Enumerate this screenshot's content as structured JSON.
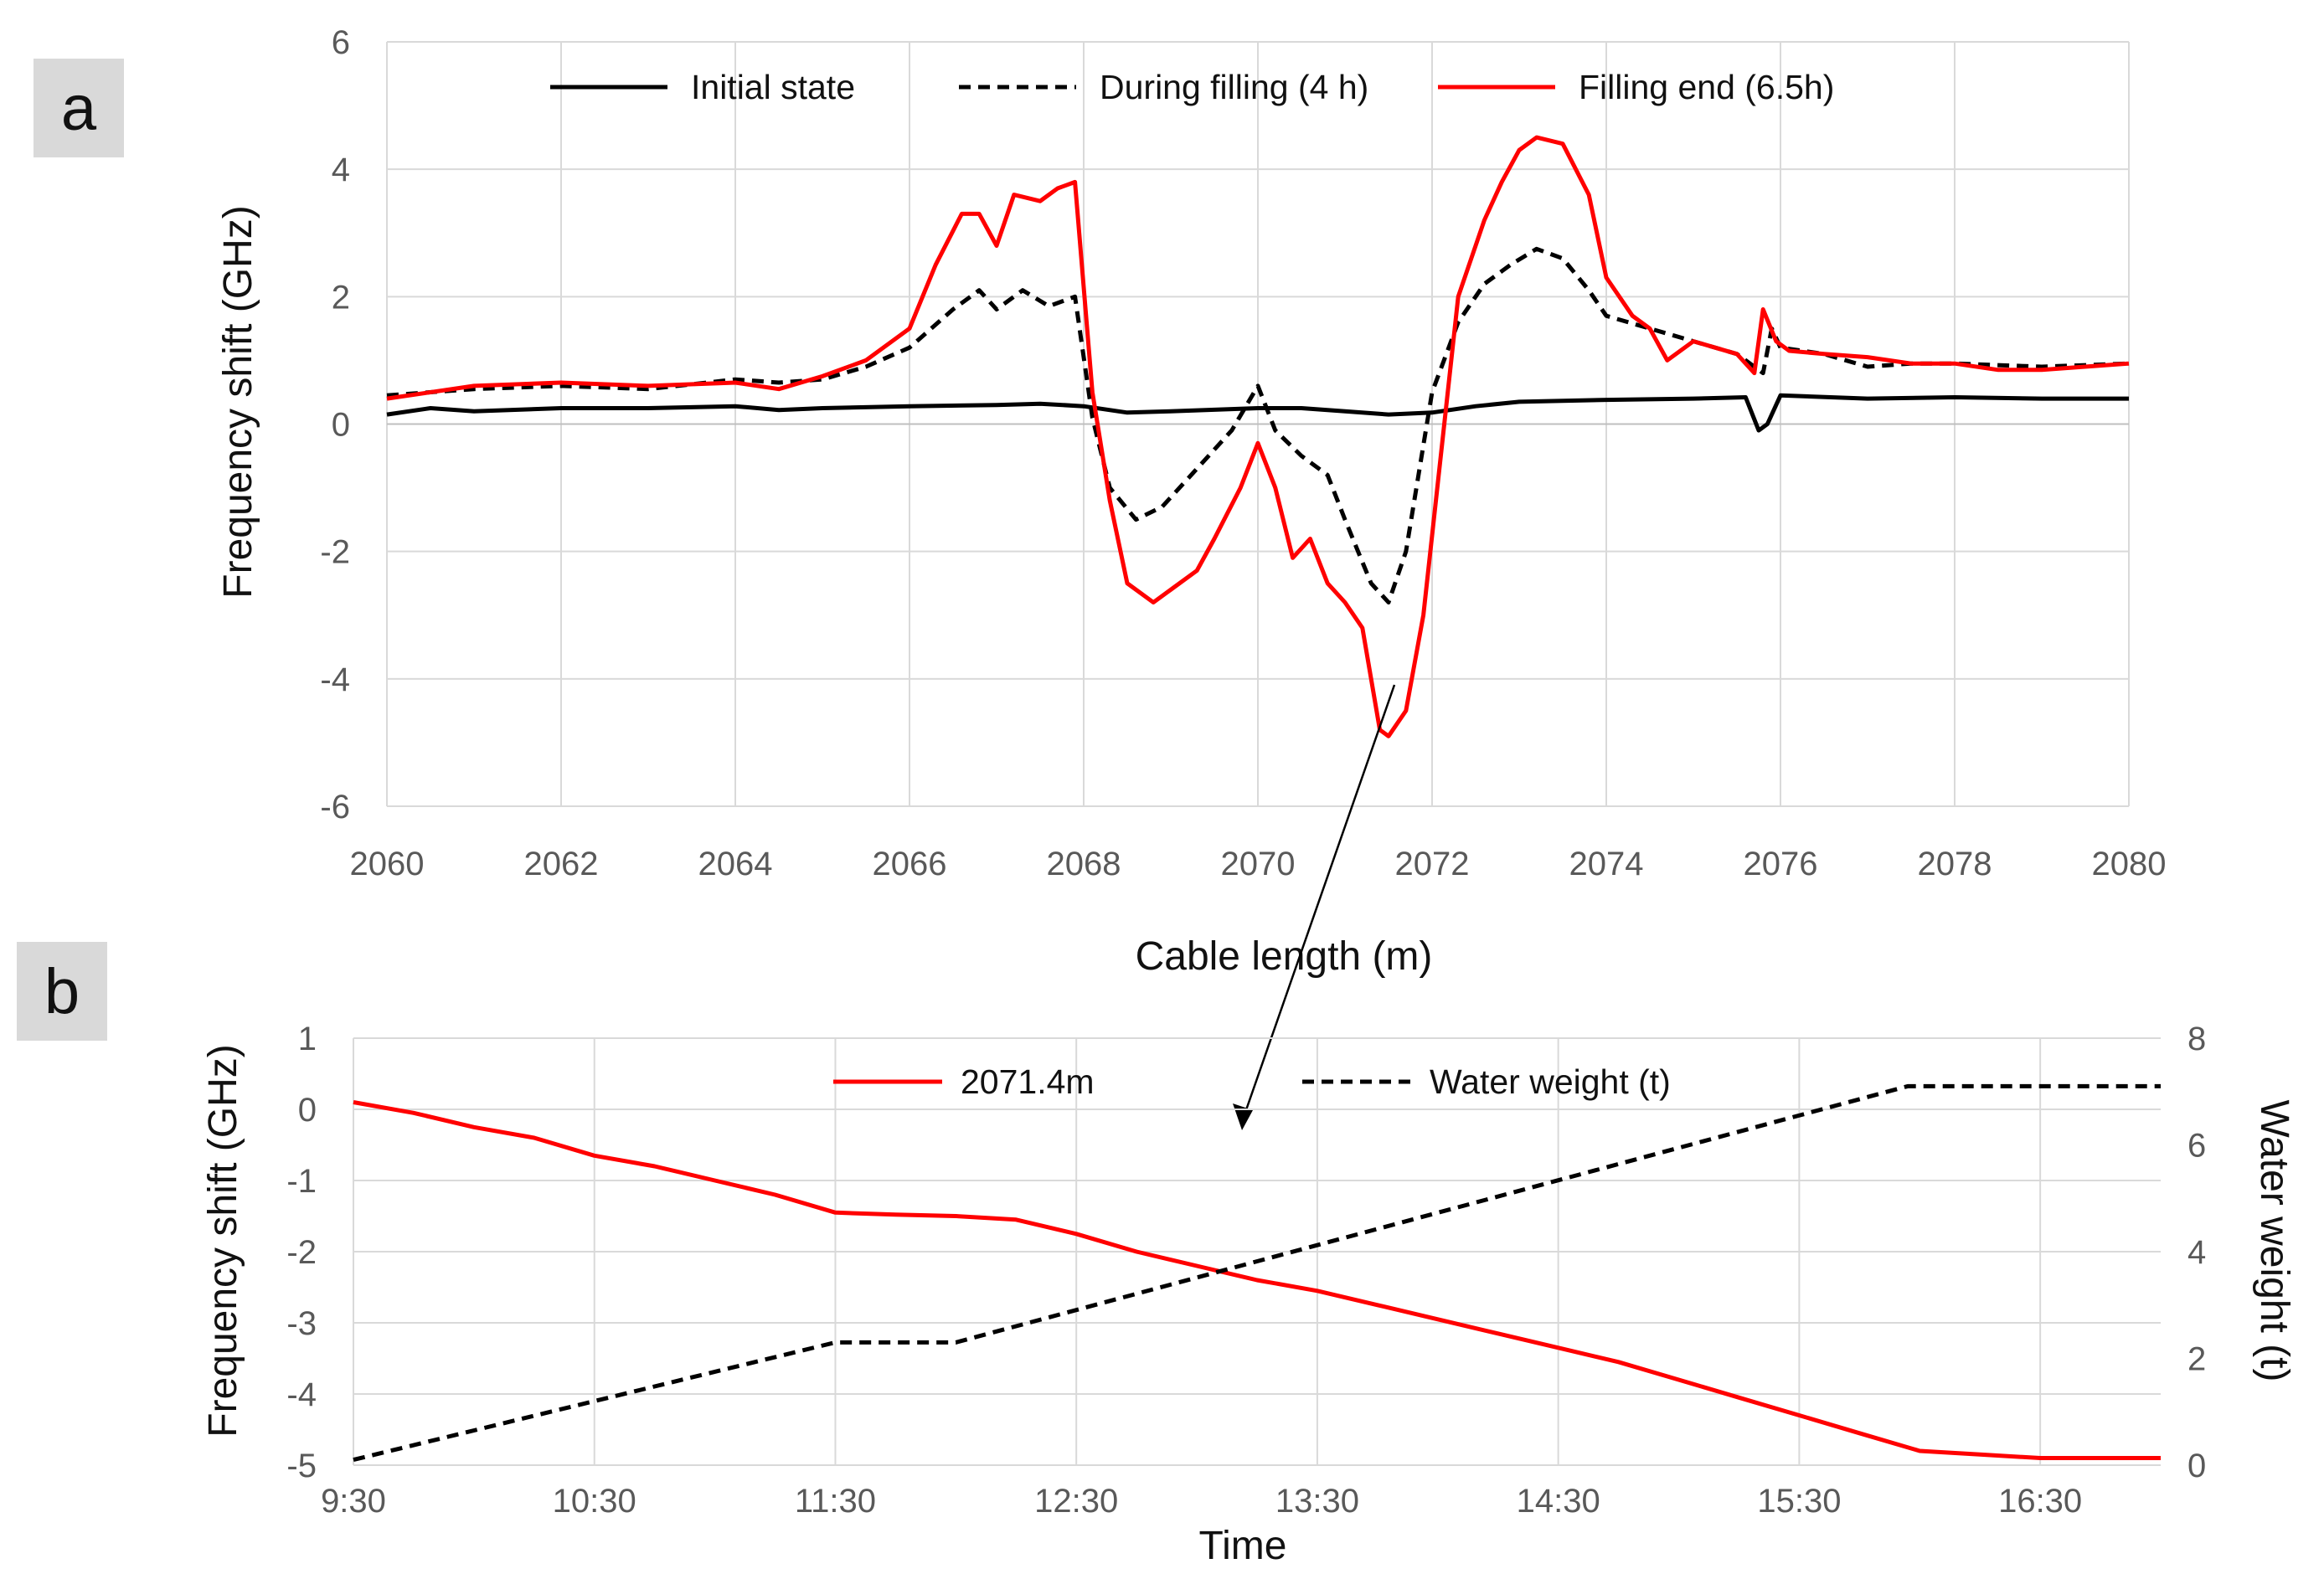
{
  "chart_data": [
    {
      "panel": "a",
      "type": "line",
      "xlabel": "Cable length (m)",
      "ylabel": "Frequency shift (GHz)",
      "xlim": [
        2060,
        2080
      ],
      "ylim": [
        -6,
        6
      ],
      "xticks": [
        2060,
        2062,
        2064,
        2066,
        2068,
        2070,
        2072,
        2074,
        2076,
        2078,
        2080
      ],
      "yticks": [
        -6,
        -4,
        -2,
        0,
        2,
        4,
        6
      ],
      "grid": true,
      "legend_position": "top",
      "series": [
        {
          "name": "Initial state",
          "color": "#000000",
          "style": "solid",
          "x": [
            2060,
            2060.5,
            2061,
            2062,
            2063,
            2064,
            2064.5,
            2065,
            2066,
            2067,
            2067.5,
            2068,
            2068.5,
            2069,
            2070,
            2070.5,
            2071,
            2071.5,
            2072,
            2072.5,
            2073,
            2074,
            2075,
            2075.6,
            2075.75,
            2075.85,
            2076,
            2077,
            2078,
            2079,
            2080
          ],
          "y": [
            0.15,
            0.25,
            0.2,
            0.25,
            0.25,
            0.28,
            0.22,
            0.25,
            0.28,
            0.3,
            0.32,
            0.28,
            0.18,
            0.2,
            0.25,
            0.25,
            0.2,
            0.15,
            0.18,
            0.28,
            0.35,
            0.38,
            0.4,
            0.42,
            -0.1,
            0.0,
            0.45,
            0.4,
            0.42,
            0.4,
            0.4
          ]
        },
        {
          "name": "During filling (4 h)",
          "color": "#000000",
          "style": "dashed",
          "x": [
            2060,
            2061,
            2062,
            2063,
            2064,
            2064.5,
            2065,
            2065.5,
            2066,
            2066.5,
            2066.8,
            2067,
            2067.3,
            2067.6,
            2067.9,
            2068.1,
            2068.3,
            2068.6,
            2068.9,
            2069.3,
            2069.7,
            2070,
            2070.2,
            2070.5,
            2070.8,
            2071,
            2071.3,
            2071.5,
            2071.7,
            2072,
            2072.3,
            2072.6,
            2072.9,
            2073.2,
            2073.5,
            2073.8,
            2074,
            2074.5,
            2075,
            2075.5,
            2075.8,
            2075.9,
            2076,
            2076.5,
            2077,
            2077.5,
            2078,
            2079,
            2080
          ],
          "y": [
            0.45,
            0.55,
            0.6,
            0.55,
            0.7,
            0.65,
            0.7,
            0.9,
            1.2,
            1.8,
            2.1,
            1.8,
            2.1,
            1.85,
            2.0,
            0.1,
            -1.0,
            -1.5,
            -1.3,
            -0.7,
            -0.1,
            0.6,
            -0.1,
            -0.5,
            -0.8,
            -1.5,
            -2.5,
            -2.8,
            -2.0,
            0.5,
            1.6,
            2.2,
            2.5,
            2.75,
            2.6,
            2.1,
            1.7,
            1.5,
            1.3,
            1.1,
            0.8,
            1.5,
            1.2,
            1.1,
            0.9,
            0.95,
            0.95,
            0.9,
            0.95
          ]
        },
        {
          "name": "Filling end (6.5h)",
          "color": "#ff0000",
          "style": "solid",
          "x": [
            2060,
            2061,
            2062,
            2063,
            2064,
            2064.5,
            2065,
            2065.5,
            2066,
            2066.3,
            2066.6,
            2066.8,
            2067,
            2067.2,
            2067.5,
            2067.7,
            2067.9,
            2068.1,
            2068.3,
            2068.5,
            2068.8,
            2069,
            2069.3,
            2069.5,
            2069.8,
            2070,
            2070.2,
            2070.4,
            2070.6,
            2070.8,
            2071,
            2071.2,
            2071.4,
            2071.5,
            2071.7,
            2071.9,
            2072.1,
            2072.3,
            2072.6,
            2072.8,
            2073,
            2073.2,
            2073.5,
            2073.8,
            2074,
            2074.3,
            2074.5,
            2074.7,
            2075,
            2075.5,
            2075.7,
            2075.8,
            2075.95,
            2076.1,
            2076.5,
            2077,
            2077.5,
            2078,
            2078.5,
            2079,
            2080
          ],
          "y": [
            0.4,
            0.6,
            0.65,
            0.6,
            0.65,
            0.55,
            0.75,
            1.0,
            1.5,
            2.5,
            3.3,
            3.3,
            2.8,
            3.6,
            3.5,
            3.7,
            3.8,
            0.5,
            -1.2,
            -2.5,
            -2.8,
            -2.6,
            -2.3,
            -1.8,
            -1.0,
            -0.3,
            -1.0,
            -2.1,
            -1.8,
            -2.5,
            -2.8,
            -3.2,
            -4.8,
            -4.9,
            -4.5,
            -3.0,
            -0.5,
            2.0,
            3.2,
            3.8,
            4.3,
            4.5,
            4.4,
            3.6,
            2.3,
            1.7,
            1.5,
            1.0,
            1.3,
            1.1,
            0.8,
            1.8,
            1.3,
            1.15,
            1.1,
            1.05,
            0.95,
            0.95,
            0.85,
            0.85,
            0.95
          ]
        }
      ]
    },
    {
      "panel": "b",
      "type": "line",
      "xlabel": "Time",
      "ylabel": "Frequency shift (GHz)",
      "y2label": "Water weight (t)",
      "xticks": [
        "9:30",
        "10:30",
        "11:30",
        "12:30",
        "13:30",
        "14:30",
        "15:30",
        "16:30"
      ],
      "xlim_hours": [
        9.5,
        17.0
      ],
      "ylim": [
        -5,
        1
      ],
      "y2lim": [
        0,
        8
      ],
      "yticks": [
        1,
        0,
        -1,
        -2,
        -3,
        -4,
        -5
      ],
      "y2ticks": [
        8,
        6,
        4,
        2,
        0
      ],
      "grid": true,
      "legend_position": "top",
      "series": [
        {
          "name": "2071.4m",
          "color": "#ff0000",
          "style": "solid",
          "axis": "left",
          "x": [
            9.5,
            9.75,
            10.0,
            10.25,
            10.5,
            10.75,
            11.0,
            11.25,
            11.5,
            11.75,
            12.0,
            12.25,
            12.5,
            12.75,
            13.0,
            13.25,
            13.5,
            13.75,
            14.0,
            14.25,
            14.5,
            14.75,
            15.0,
            15.25,
            15.5,
            15.75,
            16.0,
            16.25,
            16.5,
            16.75,
            17.0
          ],
          "y": [
            0.1,
            -0.05,
            -0.25,
            -0.4,
            -0.65,
            -0.8,
            -1.0,
            -1.2,
            -1.45,
            -1.48,
            -1.5,
            -1.55,
            -1.75,
            -2.0,
            -2.2,
            -2.4,
            -2.55,
            -2.75,
            -2.95,
            -3.15,
            -3.35,
            -3.55,
            -3.8,
            -4.05,
            -4.3,
            -4.55,
            -4.8,
            -4.85,
            -4.9,
            -4.9,
            -4.9
          ]
        },
        {
          "name": "Water weight (t)",
          "color": "#000000",
          "style": "dashed",
          "axis": "right",
          "x": [
            9.5,
            11.5,
            11.75,
            12.0,
            15.95,
            17.0
          ],
          "y": [
            0.1,
            2.3,
            2.3,
            2.3,
            7.1,
            7.1
          ]
        }
      ],
      "annotation": "arrow from panel a at 2071.4 m to panel b"
    }
  ],
  "panel_labels": {
    "a": "a",
    "b": "b"
  }
}
